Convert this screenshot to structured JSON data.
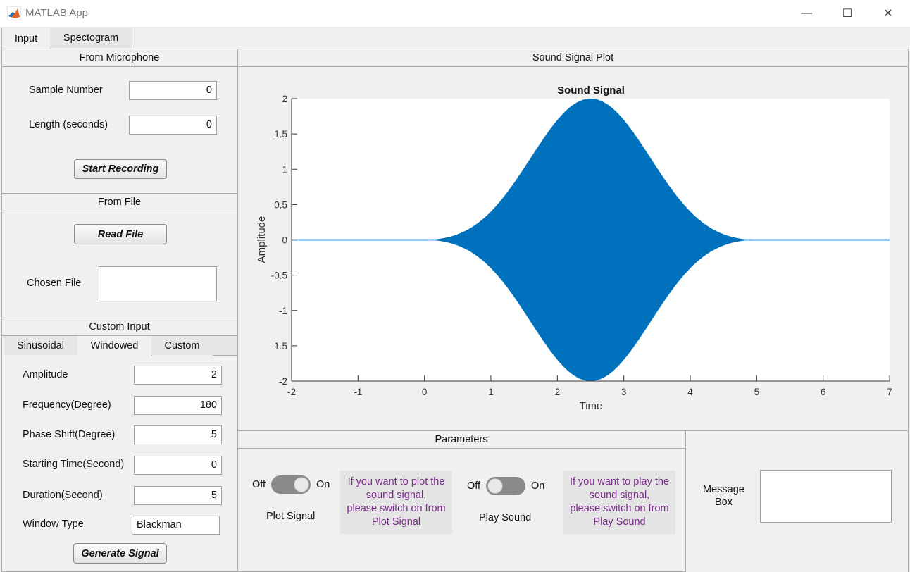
{
  "window": {
    "title": "MATLAB App",
    "minimize": "—",
    "maximize": "☐",
    "close": "✕"
  },
  "tabs": [
    "Input",
    "Spectogram"
  ],
  "mic": {
    "title": "From Microphone",
    "sample_label": "Sample Number",
    "sample_value": "0",
    "length_label": "Length (seconds)",
    "length_value": "0",
    "start_button": "Start Recording"
  },
  "file": {
    "title": "From File",
    "read_button": "Read File",
    "chosen_label": "Chosen File",
    "chosen_value": ""
  },
  "custom": {
    "title": "Custom Input",
    "subtabs": [
      "Sinusoidal",
      "Windowed",
      "Custom"
    ],
    "amplitude_label": "Amplitude",
    "amplitude_value": "2",
    "frequency_label": "Frequency(Degree)",
    "frequency_value": "180",
    "phase_label": "Phase Shift(Degree)",
    "phase_value": "5",
    "start_label": "Starting Time(Second)",
    "start_value": "0",
    "duration_label": "Duration(Second)",
    "duration_value": "5",
    "window_label": "Window Type",
    "window_value": "Blackman",
    "generate_button": "Generate Signal"
  },
  "plot_panel": {
    "title": "Sound Signal Plot"
  },
  "chart_data": {
    "type": "area",
    "title": "Sound Signal",
    "xlabel": "Time",
    "ylabel": "Amplitude",
    "xlim": [
      -2,
      7
    ],
    "ylim": [
      -2,
      2
    ],
    "xticks": [
      "-2",
      "-1",
      "0",
      "1",
      "2",
      "3",
      "4",
      "5",
      "6",
      "7"
    ],
    "yticks": [
      "2",
      "1.5",
      "1",
      "0.5",
      "0",
      "-0.5",
      "-1",
      "-1.5",
      "-2"
    ],
    "signal": {
      "window": "Blackman",
      "amplitude": 2,
      "start": 0,
      "duration": 5
    },
    "envelope_x": [
      0,
      0.5,
      1,
      1.5,
      2,
      2.5,
      3,
      3.5,
      4,
      4.5,
      5
    ],
    "envelope_y": [
      0.0,
      0.04,
      0.26,
      0.8,
      1.53,
      2.0,
      1.53,
      0.8,
      0.26,
      0.04,
      0.0
    ],
    "color": "#0072bd"
  },
  "params": {
    "title": "Parameters",
    "plot_off": "Off",
    "plot_on": "On",
    "plot_label": "Plot Signal",
    "plot_info": [
      "If you want to plot the",
      "sound signal,",
      "please switch on from",
      "Plot Signal"
    ],
    "play_off": "Off",
    "play_on": "On",
    "play_label": "Play Sound",
    "play_info": [
      "If you want to play the",
      "sound signal,",
      "please switch on from",
      "Play Sound"
    ]
  },
  "message": {
    "label": [
      "Message",
      "Box"
    ],
    "value": ""
  }
}
